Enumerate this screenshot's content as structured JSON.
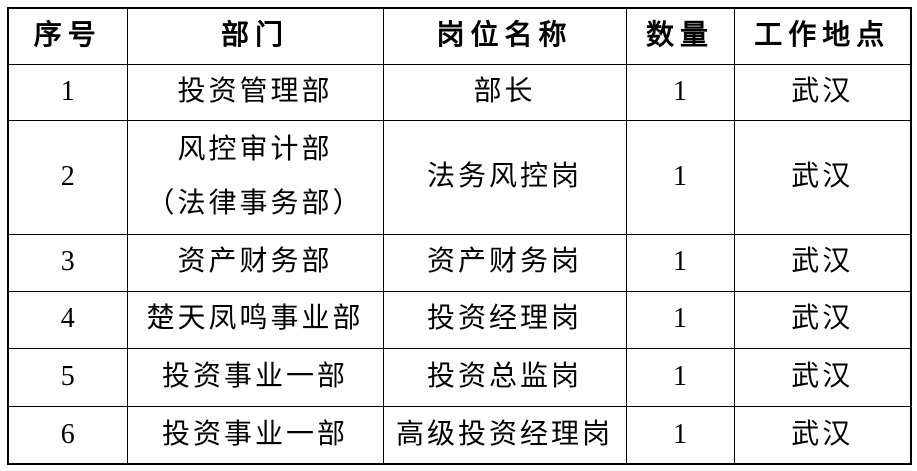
{
  "table": {
    "headers": [
      "序号",
      "部门",
      "岗位名称",
      "数量",
      "工作地点"
    ],
    "rows": [
      {
        "cells": [
          "1",
          "投资管理部",
          "部长",
          "1",
          "武汉"
        ]
      },
      {
        "cells": [
          "2",
          "风控审计部\n（法律事务部）",
          "法务风控岗",
          "1",
          "武汉"
        ]
      },
      {
        "cells": [
          "3",
          "资产财务部",
          "资产财务岗",
          "1",
          "武汉"
        ]
      },
      {
        "cells": [
          "4",
          "楚天凤鸣事业部",
          "投资经理岗",
          "1",
          "武汉"
        ]
      },
      {
        "cells": [
          "5",
          "投资事业一部",
          "投资总监岗",
          "1",
          "武汉"
        ]
      },
      {
        "cells": [
          "6",
          "投资事业一部",
          "高级投资经理岗",
          "1",
          "武汉"
        ]
      }
    ],
    "colors": {
      "border": "#000000",
      "text": "#000000",
      "background": "#ffffff"
    }
  }
}
